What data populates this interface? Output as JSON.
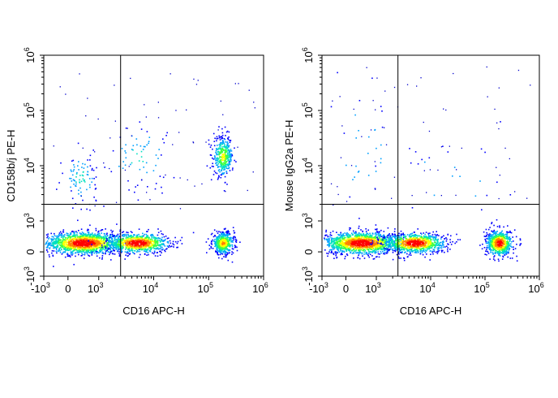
{
  "chart_data": [
    {
      "type": "scatter",
      "subtype": "flow-cytometry-density-dot-plot",
      "xlabel": "CD16 APC-H",
      "ylabel": "CD158b/j PE-H",
      "x_scale": "biexponential",
      "y_scale": "biexponential",
      "xlim": [
        -1000,
        1000000
      ],
      "ylim": [
        -1000,
        1000000
      ],
      "x_ticks": [
        {
          "value": -1000,
          "base": "-10",
          "exp": "3"
        },
        {
          "value": 0,
          "base": "0",
          "exp": ""
        },
        {
          "value": 1000,
          "base": "10",
          "exp": "3"
        },
        {
          "value": 10000,
          "base": "10",
          "exp": "4"
        },
        {
          "value": 100000,
          "base": "10",
          "exp": "5"
        },
        {
          "value": 1000000,
          "base": "10",
          "exp": "6"
        }
      ],
      "y_ticks": [
        {
          "value": -1000,
          "base": "-10",
          "exp": "3"
        },
        {
          "value": 0,
          "base": "0",
          "exp": ""
        },
        {
          "value": 1000,
          "base": "10",
          "exp": "3"
        },
        {
          "value": 10000,
          "base": "10",
          "exp": "4"
        },
        {
          "value": 100000,
          "base": "10",
          "exp": "5"
        },
        {
          "value": 1000000,
          "base": "10",
          "exp": "6"
        }
      ],
      "gate_x": 2500,
      "gate_y": 2000,
      "grid": false,
      "colormap": [
        "#0000ff",
        "#00a0ff",
        "#00e0c0",
        "#40ff40",
        "#ffff00",
        "#ff8000",
        "#ff0000"
      ],
      "populations": [
        {
          "x": 500,
          "y": 300,
          "n": 1500,
          "sx": 0.09,
          "sy": 0.025
        },
        {
          "x": 5000,
          "y": 300,
          "n": 900,
          "sx": 0.07,
          "sy": 0.022
        },
        {
          "x": 180000,
          "y": 300,
          "n": 500,
          "sx": 0.025,
          "sy": 0.025
        },
        {
          "x": 180000,
          "y": 15000,
          "n": 380,
          "sx": 0.022,
          "sy": 0.045
        },
        {
          "x": 400,
          "y": 6000,
          "n": 90,
          "sx": 0.04,
          "sy": 0.06
        },
        {
          "x": 5000,
          "y": 15000,
          "n": 70,
          "sx": 0.08,
          "sy": 0.08
        }
      ]
    },
    {
      "type": "scatter",
      "subtype": "flow-cytometry-density-dot-plot",
      "xlabel": "CD16 APC-H",
      "ylabel": "Mouse IgG2a PE-H",
      "x_scale": "biexponential",
      "y_scale": "biexponential",
      "xlim": [
        -1000,
        1000000
      ],
      "ylim": [
        -1000,
        1000000
      ],
      "x_ticks": [
        {
          "value": -1000,
          "base": "-10",
          "exp": "3"
        },
        {
          "value": 0,
          "base": "0",
          "exp": ""
        },
        {
          "value": 1000,
          "base": "10",
          "exp": "3"
        },
        {
          "value": 10000,
          "base": "10",
          "exp": "4"
        },
        {
          "value": 100000,
          "base": "10",
          "exp": "5"
        },
        {
          "value": 1000000,
          "base": "10",
          "exp": "6"
        }
      ],
      "y_ticks": [
        {
          "value": -1000,
          "base": "-10",
          "exp": "3"
        },
        {
          "value": 0,
          "base": "0",
          "exp": ""
        },
        {
          "value": 1000,
          "base": "10",
          "exp": "3"
        },
        {
          "value": 10000,
          "base": "10",
          "exp": "4"
        },
        {
          "value": 100000,
          "base": "10",
          "exp": "5"
        },
        {
          "value": 1000000,
          "base": "10",
          "exp": "6"
        }
      ],
      "gate_x": 2500,
      "gate_y": 2000,
      "grid": false,
      "colormap": [
        "#0000ff",
        "#00a0ff",
        "#00e0c0",
        "#40ff40",
        "#ffff00",
        "#ff8000",
        "#ff0000"
      ],
      "populations": [
        {
          "x": 500,
          "y": 300,
          "n": 1500,
          "sx": 0.09,
          "sy": 0.025
        },
        {
          "x": 5000,
          "y": 300,
          "n": 900,
          "sx": 0.07,
          "sy": 0.022
        },
        {
          "x": 180000,
          "y": 300,
          "n": 700,
          "sx": 0.03,
          "sy": 0.028
        },
        {
          "x": 600,
          "y": 20000,
          "n": 30,
          "sx": 0.08,
          "sy": 0.15
        },
        {
          "x": 20000,
          "y": 5000,
          "n": 25,
          "sx": 0.15,
          "sy": 0.1
        }
      ]
    }
  ]
}
